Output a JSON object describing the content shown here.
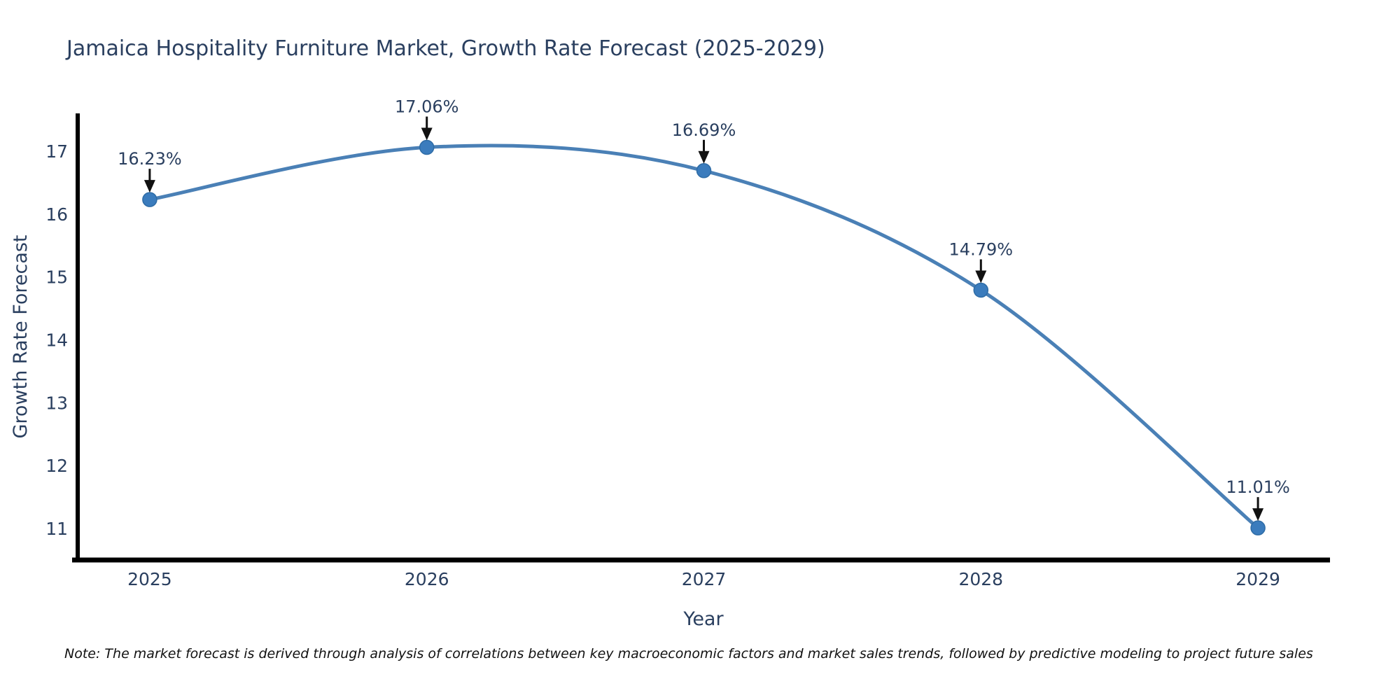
{
  "title": "Jamaica Hospitality Furniture Market, Growth Rate Forecast (2025-2029)",
  "note": "Note: The market forecast is derived through analysis of correlations between key macroeconomic factors and market sales trends, followed by predictive modeling to project future sales",
  "chart_data": {
    "type": "line",
    "line_shape": "spline",
    "x": [
      2025,
      2026,
      2027,
      2028,
      2029
    ],
    "values": [
      16.23,
      17.06,
      16.69,
      14.79,
      11.01
    ],
    "point_labels": [
      "16.23%",
      "17.06%",
      "16.69%",
      "14.79%",
      "11.01%"
    ],
    "title": "Jamaica Hospitality Furniture Market, Growth Rate Forecast (2025-2029)",
    "xlabel": "Year",
    "ylabel": "Growth Rate Forecast",
    "xticks": [
      "2025",
      "2026",
      "2027",
      "2028",
      "2029"
    ],
    "yticks": [
      11,
      12,
      13,
      14,
      15,
      16,
      17
    ],
    "xlim": [
      2024.74,
      2029.26
    ],
    "ylim": [
      10.5,
      17.6
    ],
    "grid": false,
    "legend": "none",
    "colors": {
      "line": "#4a80b6",
      "marker": "#3b7cbd",
      "marker_edge": "#2e6ca6",
      "axis": "#000000",
      "text": "#2a3f5f",
      "arrow": "#111111"
    }
  }
}
